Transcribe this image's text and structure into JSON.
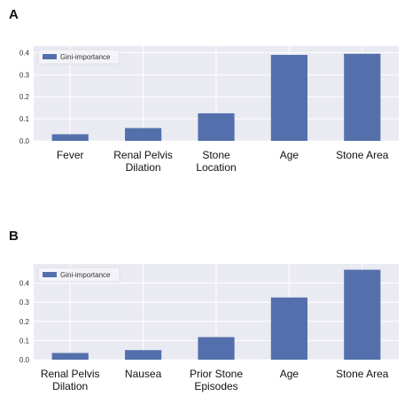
{
  "panels": [
    {
      "label": "A"
    },
    {
      "label": "B"
    }
  ],
  "colors": {
    "bar": "#5470ac",
    "plot_bg": "#eaeaf2",
    "grid": "#ffffff"
  },
  "chart_data": [
    {
      "type": "bar",
      "categories": [
        [
          "Fever"
        ],
        [
          "Renal Pelvis",
          "Dilation"
        ],
        [
          "Stone",
          "Location"
        ],
        [
          "Age"
        ],
        [
          "Stone Area"
        ]
      ],
      "series": [
        {
          "name": "Gini-importance",
          "values": [
            0.03,
            0.058,
            0.125,
            0.39,
            0.395
          ]
        }
      ],
      "yticks": [
        "0.0",
        "0.1",
        "0.2",
        "0.3",
        "0.4"
      ],
      "ylim": [
        0,
        0.43
      ],
      "legend": "top-left",
      "grid": true
    },
    {
      "type": "bar",
      "categories": [
        [
          "Renal Pelvis",
          "Dilation"
        ],
        [
          "Nausea"
        ],
        [
          "Prior Stone",
          "Episodes"
        ],
        [
          "Age"
        ],
        [
          "Stone Area"
        ]
      ],
      "series": [
        {
          "name": "Gini-importance",
          "values": [
            0.035,
            0.05,
            0.118,
            0.325,
            0.47
          ]
        }
      ],
      "yticks": [
        "0.0",
        "0.1",
        "0.2",
        "0.3",
        "0.4"
      ],
      "ylim": [
        0,
        0.5
      ],
      "legend": "top-left",
      "grid": true
    }
  ]
}
